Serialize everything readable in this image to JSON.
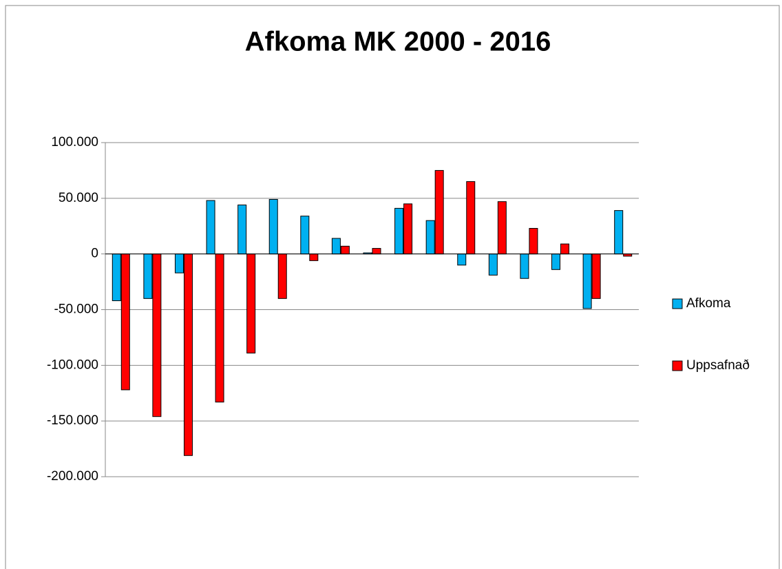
{
  "chart_data": {
    "type": "bar",
    "title": "Afkoma MK 2000 - 2016",
    "categories": [
      null,
      null,
      null,
      null,
      null,
      null,
      null,
      null,
      null,
      null,
      null,
      null,
      null,
      null,
      null,
      null,
      null
    ],
    "series": [
      {
        "name": "Afkoma",
        "color": "#00b0f0",
        "values": [
          -42000,
          -40000,
          -17000,
          48000,
          44000,
          49000,
          34000,
          14000,
          1000,
          41000,
          30000,
          -10000,
          -19000,
          -22000,
          -14000,
          -49000,
          39000
        ]
      },
      {
        "name": "Uppsafnað",
        "color": "#ff0000",
        "values": [
          -122000,
          -146000,
          -181000,
          -133000,
          -89000,
          -40000,
          -6000,
          7000,
          5000,
          45000,
          75000,
          65000,
          47000,
          23000,
          9000,
          -40000,
          -2000
        ]
      }
    ],
    "ylim": [
      -200000,
      100000
    ],
    "yticks": [
      {
        "value": -200000,
        "label": "-200.000"
      },
      {
        "value": -150000,
        "label": "-150.000"
      },
      {
        "value": -100000,
        "label": "-100.000"
      },
      {
        "value": -50000,
        "label": "-50.000"
      },
      0,
      {
        "value": 50000,
        "label": "50.000"
      },
      {
        "value": 100000,
        "label": "100.000"
      }
    ],
    "grid": true,
    "legend": "right"
  }
}
